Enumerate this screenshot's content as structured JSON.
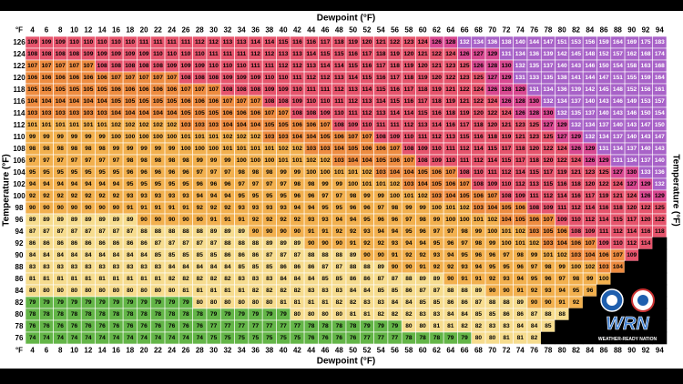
{
  "table": {
    "x_title": "Dewpoint (°F)",
    "y_title": "Temperature (°F)",
    "corner": "°F",
    "columns": [
      4,
      6,
      8,
      10,
      12,
      14,
      16,
      18,
      20,
      22,
      24,
      26,
      28,
      30,
      32,
      34,
      36,
      38,
      40,
      42,
      44,
      46,
      48,
      50,
      52,
      54,
      56,
      58,
      60,
      62,
      64,
      66,
      68,
      70,
      72,
      74,
      76,
      78,
      80,
      82,
      84,
      86,
      88,
      90,
      92,
      94
    ],
    "rows": [
      126,
      124,
      122,
      120,
      118,
      116,
      114,
      112,
      110,
      108,
      106,
      104,
      102,
      100,
      98,
      96,
      94,
      92,
      90,
      88,
      86,
      84,
      82,
      80,
      78,
      76
    ],
    "values": [
      [
        109,
        109,
        109,
        110,
        110,
        110,
        110,
        110,
        111,
        111,
        111,
        111,
        112,
        112,
        113,
        113,
        114,
        114,
        115,
        116,
        116,
        117,
        118,
        119,
        120,
        121,
        122,
        123,
        124,
        126,
        128,
        132,
        134,
        136,
        138,
        140,
        144,
        147,
        151,
        153,
        156,
        159,
        164,
        169,
        175,
        183
      ],
      [
        108,
        108,
        108,
        108,
        109,
        109,
        109,
        109,
        109,
        110,
        110,
        110,
        110,
        111,
        111,
        111,
        112,
        112,
        113,
        113,
        114,
        115,
        115,
        116,
        117,
        118,
        119,
        120,
        121,
        122,
        124,
        126,
        127,
        129,
        131,
        134,
        136,
        139,
        142,
        145,
        148,
        152,
        157,
        162,
        168,
        174
      ],
      [
        107,
        107,
        107,
        107,
        107,
        108,
        108,
        108,
        108,
        108,
        109,
        109,
        109,
        110,
        110,
        110,
        111,
        111,
        112,
        112,
        113,
        114,
        114,
        115,
        116,
        117,
        118,
        119,
        120,
        121,
        123,
        125,
        126,
        128,
        130,
        132,
        135,
        137,
        140,
        143,
        146,
        150,
        154,
        158,
        163,
        168
      ],
      [
        106,
        106,
        106,
        106,
        106,
        106,
        107,
        107,
        107,
        107,
        107,
        108,
        108,
        108,
        109,
        109,
        109,
        110,
        110,
        111,
        112,
        112,
        113,
        114,
        115,
        116,
        117,
        118,
        119,
        120,
        122,
        123,
        125,
        127,
        129,
        131,
        133,
        135,
        138,
        141,
        144,
        147,
        151,
        155,
        159,
        164
      ],
      [
        105,
        105,
        105,
        105,
        105,
        105,
        106,
        106,
        106,
        106,
        106,
        107,
        107,
        107,
        108,
        108,
        108,
        109,
        109,
        110,
        111,
        111,
        112,
        113,
        114,
        115,
        116,
        117,
        118,
        119,
        121,
        122,
        124,
        126,
        128,
        129,
        131,
        134,
        136,
        139,
        142,
        145,
        148,
        152,
        156,
        161
      ],
      [
        104,
        104,
        104,
        104,
        104,
        104,
        105,
        105,
        105,
        105,
        105,
        106,
        106,
        106,
        107,
        107,
        107,
        108,
        108,
        109,
        110,
        110,
        111,
        112,
        113,
        114,
        115,
        116,
        117,
        118,
        119,
        121,
        122,
        124,
        126,
        128,
        130,
        132,
        134,
        137,
        140,
        143,
        146,
        149,
        153,
        157
      ],
      [
        103,
        103,
        103,
        103,
        103,
        103,
        104,
        104,
        104,
        104,
        104,
        105,
        105,
        105,
        106,
        106,
        106,
        107,
        107,
        108,
        108,
        109,
        110,
        111,
        112,
        113,
        114,
        114,
        115,
        116,
        118,
        119,
        120,
        122,
        124,
        126,
        128,
        130,
        132,
        135,
        137,
        140,
        143,
        146,
        150,
        154
      ],
      [
        101,
        101,
        101,
        101,
        101,
        101,
        102,
        102,
        102,
        102,
        102,
        103,
        103,
        103,
        104,
        104,
        104,
        105,
        105,
        106,
        106,
        107,
        108,
        109,
        110,
        111,
        111,
        112,
        113,
        114,
        116,
        117,
        118,
        120,
        121,
        123,
        125,
        127,
        129,
        132,
        134,
        137,
        140,
        143,
        147,
        150
      ],
      [
        99,
        99,
        99,
        99,
        99,
        99,
        100,
        100,
        100,
        100,
        100,
        101,
        101,
        101,
        102,
        102,
        102,
        103,
        103,
        104,
        104,
        105,
        106,
        107,
        107,
        108,
        109,
        110,
        111,
        112,
        113,
        115,
        116,
        118,
        119,
        121,
        123,
        125,
        127,
        129,
        132,
        134,
        137,
        140,
        143,
        147
      ],
      [
        98,
        98,
        98,
        98,
        98,
        98,
        99,
        99,
        99,
        99,
        99,
        100,
        100,
        100,
        101,
        101,
        101,
        101,
        102,
        102,
        103,
        103,
        104,
        105,
        106,
        106,
        107,
        108,
        109,
        110,
        111,
        112,
        114,
        115,
        117,
        118,
        120,
        122,
        124,
        126,
        129,
        131,
        134,
        137,
        140,
        143
      ],
      [
        97,
        97,
        97,
        97,
        97,
        97,
        97,
        98,
        98,
        98,
        98,
        98,
        99,
        99,
        99,
        100,
        100,
        100,
        101,
        101,
        102,
        102,
        103,
        104,
        104,
        105,
        106,
        107,
        108,
        109,
        110,
        111,
        112,
        114,
        115,
        117,
        118,
        120,
        122,
        124,
        126,
        129,
        131,
        134,
        137,
        140
      ],
      [
        95,
        95,
        95,
        95,
        95,
        95,
        95,
        96,
        96,
        96,
        96,
        96,
        97,
        97,
        97,
        98,
        98,
        98,
        99,
        99,
        100,
        100,
        101,
        101,
        102,
        103,
        104,
        104,
        105,
        106,
        107,
        108,
        110,
        111,
        112,
        114,
        115,
        117,
        119,
        121,
        123,
        125,
        127,
        130,
        133,
        136
      ],
      [
        94,
        94,
        94,
        94,
        94,
        94,
        94,
        95,
        95,
        95,
        95,
        95,
        96,
        96,
        96,
        97,
        97,
        97,
        97,
        98,
        98,
        99,
        99,
        100,
        101,
        101,
        102,
        103,
        104,
        105,
        106,
        107,
        108,
        109,
        110,
        112,
        113,
        115,
        116,
        118,
        120,
        122,
        124,
        127,
        129,
        132
      ],
      [
        92,
        92,
        92,
        92,
        92,
        92,
        92,
        93,
        93,
        93,
        93,
        93,
        94,
        94,
        94,
        95,
        95,
        95,
        95,
        96,
        96,
        97,
        97,
        98,
        99,
        99,
        100,
        101,
        102,
        103,
        104,
        105,
        106,
        107,
        108,
        109,
        111,
        112,
        114,
        116,
        117,
        119,
        121,
        124,
        126,
        129
      ],
      [
        90,
        90,
        90,
        90,
        90,
        90,
        90,
        91,
        91,
        91,
        91,
        91,
        92,
        92,
        92,
        93,
        93,
        93,
        93,
        94,
        94,
        95,
        95,
        96,
        96,
        97,
        98,
        99,
        99,
        100,
        101,
        102,
        103,
        104,
        105,
        106,
        108,
        109,
        111,
        112,
        114,
        116,
        118,
        120,
        122,
        125
      ],
      [
        89,
        89,
        89,
        89,
        89,
        89,
        89,
        89,
        90,
        90,
        90,
        90,
        90,
        91,
        91,
        91,
        92,
        92,
        92,
        92,
        93,
        93,
        94,
        94,
        95,
        96,
        96,
        97,
        98,
        99,
        100,
        100,
        101,
        102,
        104,
        105,
        106,
        107,
        109,
        110,
        112,
        114,
        115,
        117,
        120,
        122
      ],
      [
        87,
        87,
        87,
        87,
        87,
        87,
        87,
        87,
        88,
        88,
        88,
        88,
        88,
        89,
        89,
        89,
        90,
        90,
        90,
        90,
        91,
        91,
        92,
        92,
        93,
        94,
        94,
        95,
        96,
        97,
        97,
        98,
        99,
        100,
        101,
        102,
        103,
        105,
        106,
        108,
        109,
        111,
        112,
        114,
        116,
        118
      ],
      [
        86,
        86,
        86,
        86,
        86,
        86,
        86,
        86,
        86,
        87,
        87,
        87,
        87,
        87,
        88,
        88,
        88,
        89,
        89,
        89,
        90,
        90,
        90,
        91,
        92,
        92,
        93,
        94,
        94,
        95,
        96,
        97,
        98,
        99,
        100,
        101,
        102,
        103,
        104,
        106,
        107,
        109,
        110,
        112,
        114,
        null
      ],
      [
        84,
        84,
        84,
        84,
        84,
        84,
        84,
        84,
        84,
        85,
        85,
        85,
        85,
        85,
        86,
        86,
        86,
        87,
        87,
        87,
        88,
        88,
        88,
        89,
        90,
        90,
        91,
        92,
        92,
        93,
        94,
        95,
        96,
        96,
        97,
        98,
        99,
        101,
        102,
        103,
        104,
        106,
        107,
        109,
        null,
        null
      ],
      [
        83,
        83,
        83,
        83,
        83,
        83,
        83,
        83,
        83,
        83,
        84,
        84,
        84,
        84,
        84,
        85,
        85,
        85,
        86,
        86,
        86,
        87,
        87,
        88,
        88,
        89,
        90,
        90,
        91,
        92,
        92,
        93,
        94,
        95,
        95,
        96,
        97,
        98,
        99,
        100,
        102,
        103,
        104,
        null,
        null,
        null
      ],
      [
        81,
        81,
        81,
        81,
        81,
        81,
        81,
        81,
        81,
        81,
        82,
        82,
        82,
        82,
        82,
        83,
        83,
        83,
        84,
        84,
        84,
        85,
        85,
        86,
        86,
        87,
        87,
        88,
        89,
        89,
        90,
        91,
        91,
        92,
        93,
        94,
        95,
        96,
        97,
        98,
        99,
        100,
        null,
        null,
        null,
        null
      ],
      [
        80,
        80,
        80,
        80,
        80,
        80,
        80,
        80,
        80,
        80,
        80,
        81,
        81,
        81,
        81,
        81,
        82,
        82,
        82,
        82,
        83,
        83,
        83,
        84,
        84,
        85,
        85,
        86,
        87,
        87,
        88,
        88,
        89,
        90,
        90,
        91,
        92,
        93,
        94,
        95,
        96,
        null,
        null,
        null,
        null,
        null
      ],
      [
        79,
        79,
        79,
        79,
        79,
        79,
        79,
        79,
        79,
        79,
        79,
        79,
        80,
        80,
        80,
        80,
        80,
        80,
        81,
        81,
        81,
        81,
        82,
        82,
        83,
        83,
        84,
        84,
        85,
        85,
        86,
        86,
        87,
        88,
        88,
        89,
        90,
        90,
        91,
        92,
        null,
        null,
        null,
        null,
        null,
        null
      ],
      [
        78,
        78,
        78,
        78,
        78,
        78,
        78,
        78,
        78,
        78,
        78,
        78,
        78,
        79,
        79,
        79,
        79,
        79,
        79,
        80,
        80,
        80,
        80,
        81,
        81,
        82,
        82,
        82,
        83,
        83,
        84,
        84,
        85,
        85,
        86,
        86,
        87,
        88,
        88,
        null,
        null,
        null,
        null,
        null,
        null,
        null
      ],
      [
        76,
        76,
        76,
        76,
        76,
        76,
        76,
        76,
        76,
        76,
        76,
        76,
        76,
        77,
        77,
        77,
        77,
        77,
        77,
        77,
        78,
        78,
        78,
        78,
        79,
        79,
        79,
        80,
        80,
        81,
        81,
        82,
        82,
        83,
        83,
        84,
        84,
        85,
        null,
        null,
        null,
        null,
        null,
        null,
        null,
        null
      ],
      [
        74,
        74,
        74,
        74,
        74,
        74,
        74,
        74,
        74,
        74,
        74,
        74,
        74,
        75,
        75,
        75,
        75,
        75,
        75,
        75,
        76,
        76,
        76,
        76,
        77,
        77,
        77,
        78,
        78,
        78,
        79,
        79,
        80,
        80,
        81,
        81,
        82,
        null,
        null,
        null,
        null,
        null,
        null,
        null,
        null,
        null
      ]
    ],
    "colors": [
      "#63b547",
      "#f6dc8e",
      "#f2b04e",
      "#ee8c40",
      "#e6546c",
      "#d84890",
      "#a862c8"
    ]
  },
  "logos": {
    "wrn": "WRN",
    "tagline": "WEATHER-READY NATION"
  }
}
